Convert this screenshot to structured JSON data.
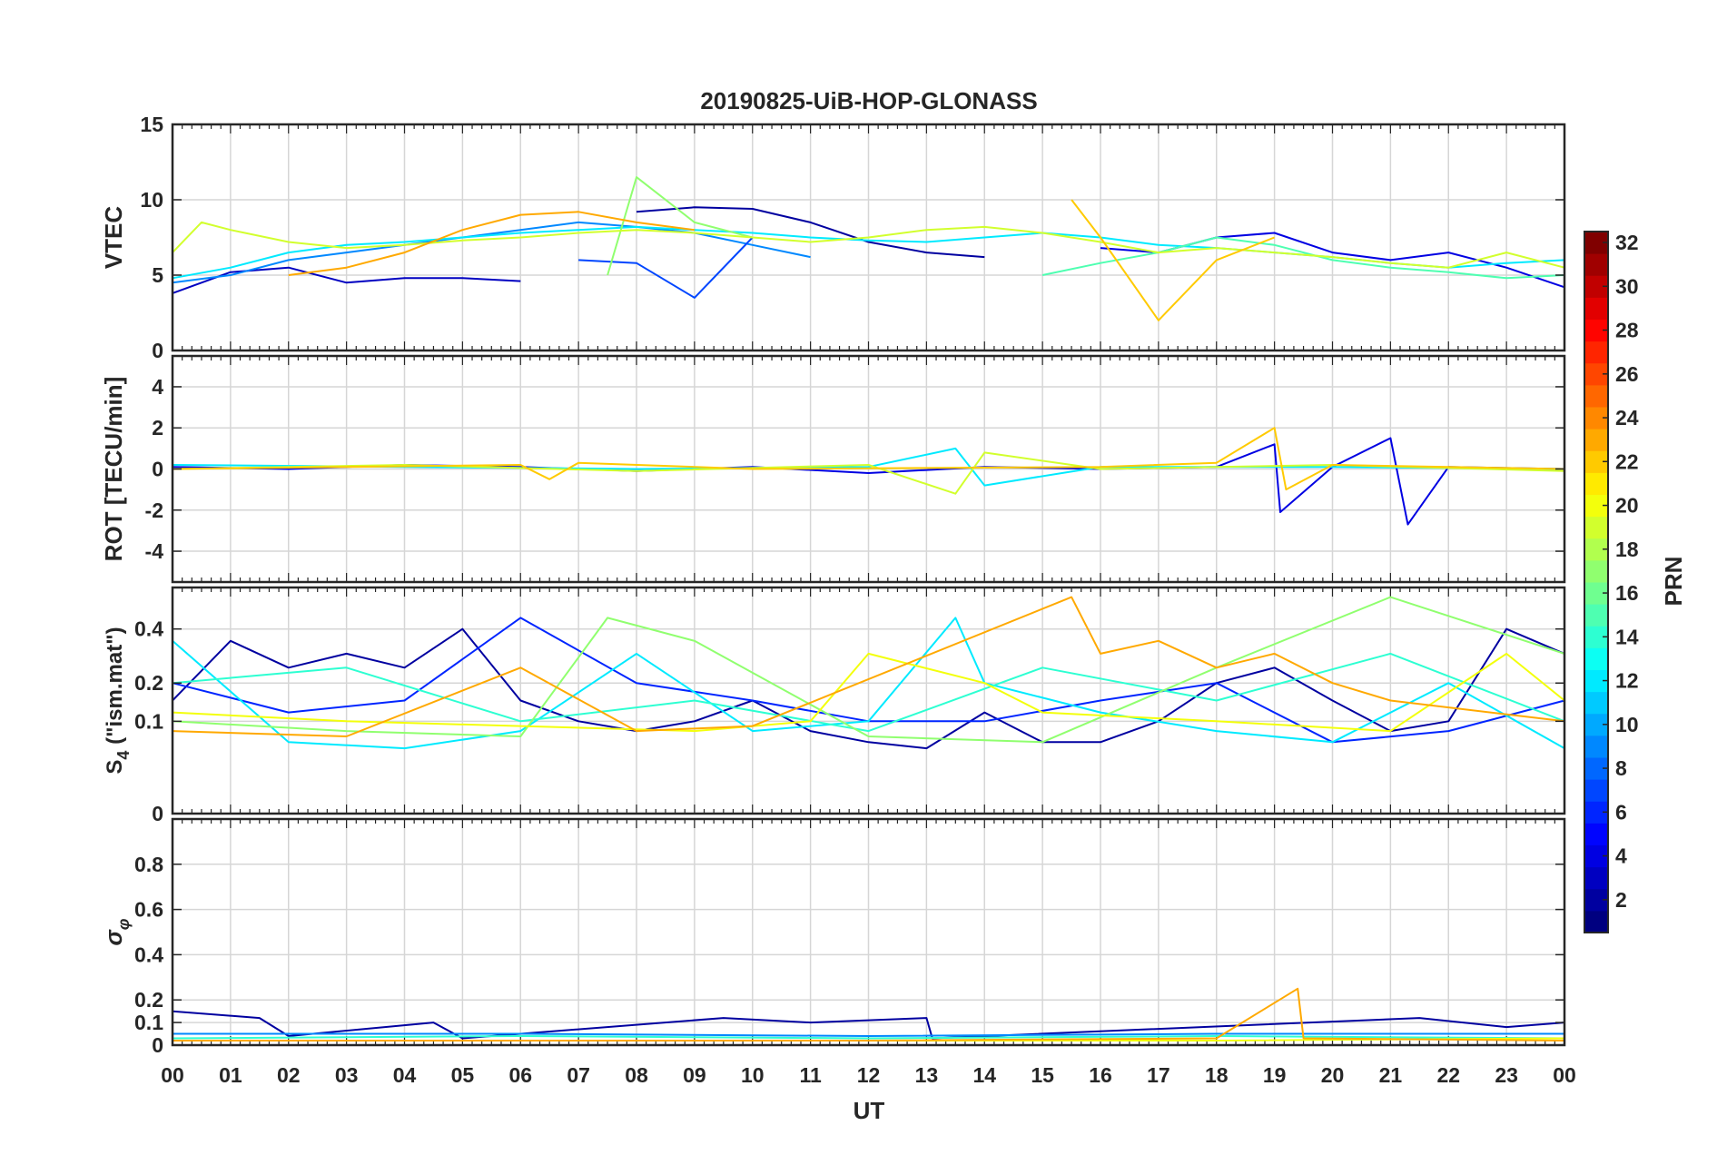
{
  "title": "20190825-UiB-HOP-GLONASS",
  "x_axis": {
    "label": "UT",
    "min": 0,
    "max": 24,
    "tick_labels": [
      "00",
      "01",
      "02",
      "03",
      "04",
      "05",
      "06",
      "07",
      "08",
      "09",
      "10",
      "11",
      "12",
      "13",
      "14",
      "15",
      "16",
      "17",
      "18",
      "19",
      "20",
      "21",
      "22",
      "23",
      "00"
    ]
  },
  "colorbar": {
    "label": "PRN",
    "min": 1,
    "max": 32,
    "tick_labels": [
      "2",
      "4",
      "6",
      "8",
      "10",
      "12",
      "14",
      "16",
      "18",
      "20",
      "22",
      "24",
      "26",
      "28",
      "30",
      "32"
    ],
    "colormap": "jet"
  },
  "chart_data": [
    {
      "type": "line",
      "panel": "vtec",
      "ylabel": "VTEC",
      "ylim": [
        0,
        15
      ],
      "yticks": [
        0,
        5,
        10,
        15
      ],
      "ytick_labels": [
        "0",
        "5",
        "10",
        "15"
      ],
      "grid": true,
      "series": [
        {
          "prn": 3,
          "x": [
            0,
            1,
            2,
            3,
            4,
            5,
            6
          ],
          "y": [
            3.8,
            5.2,
            5.5,
            4.5,
            4.8,
            4.8,
            4.6
          ]
        },
        {
          "prn": 2,
          "x": [
            8,
            9,
            10,
            11,
            12,
            13,
            14
          ],
          "y": [
            9.2,
            9.5,
            9.4,
            8.5,
            7.2,
            6.5,
            6.2
          ]
        },
        {
          "prn": 4,
          "x": [
            16,
            17,
            18,
            19,
            20,
            21,
            22,
            23,
            24
          ],
          "y": [
            6.8,
            6.5,
            7.5,
            7.8,
            6.5,
            6.0,
            6.5,
            5.5,
            4.2
          ]
        },
        {
          "prn": 9,
          "x": [
            0,
            1,
            2,
            3,
            4,
            5,
            6,
            7,
            8,
            9,
            10,
            11
          ],
          "y": [
            4.5,
            5.0,
            6.0,
            6.5,
            7.0,
            7.5,
            8.0,
            8.5,
            8.2,
            7.8,
            7.0,
            6.2
          ]
        },
        {
          "prn": 7,
          "x": [
            7,
            8,
            9,
            10
          ],
          "y": [
            6.0,
            5.8,
            3.5,
            7.5
          ]
        },
        {
          "prn": 12,
          "x": [
            0,
            1,
            2,
            3,
            4,
            5,
            6,
            7,
            8,
            9,
            10,
            11,
            12,
            13,
            14,
            15,
            16,
            17,
            18,
            19,
            20,
            21,
            22,
            23,
            24
          ],
          "y": [
            4.8,
            5.5,
            6.5,
            7.0,
            7.2,
            7.5,
            7.8,
            8.0,
            8.2,
            8.0,
            7.8,
            7.5,
            7.3,
            7.2,
            7.5,
            7.8,
            7.5,
            7.0,
            6.8,
            6.5,
            6.2,
            5.8,
            5.5,
            5.8,
            6.0
          ]
        },
        {
          "prn": 15,
          "x": [
            15,
            16,
            17,
            18,
            19,
            20,
            21,
            22,
            23,
            24
          ],
          "y": [
            5.0,
            5.8,
            6.5,
            7.5,
            7.0,
            6.0,
            5.5,
            5.2,
            4.8,
            5.0
          ]
        },
        {
          "prn": 17,
          "x": [
            7.5,
            8,
            9,
            10
          ],
          "y": [
            5.0,
            11.5,
            8.5,
            7.5
          ]
        },
        {
          "prn": 19,
          "x": [
            0,
            0.5,
            1,
            2,
            3,
            4,
            5,
            6,
            7,
            8,
            9,
            10,
            11,
            12,
            13,
            14,
            15,
            16,
            17,
            18,
            19,
            20,
            21,
            22,
            23,
            24
          ],
          "y": [
            6.5,
            8.5,
            8.0,
            7.2,
            6.8,
            7.0,
            7.3,
            7.5,
            7.8,
            8.0,
            7.8,
            7.5,
            7.2,
            7.5,
            8.0,
            8.2,
            7.8,
            7.2,
            6.5,
            6.8,
            6.5,
            6.2,
            5.8,
            5.5,
            6.5,
            5.5
          ]
        },
        {
          "prn": 23,
          "x": [
            2,
            3,
            4,
            5,
            6,
            7,
            8,
            9
          ],
          "y": [
            5.0,
            5.5,
            6.5,
            8.0,
            9.0,
            9.2,
            8.5,
            8.0
          ]
        },
        {
          "prn": 22,
          "x": [
            15.5,
            16,
            17,
            18,
            19
          ],
          "y": [
            10.0,
            7.5,
            2.0,
            6.0,
            7.5
          ]
        }
      ]
    },
    {
      "type": "line",
      "panel": "rot",
      "ylabel": "ROT [TECU/min]",
      "ylim": [
        -5.5,
        5.5
      ],
      "yticks": [
        -4,
        -2,
        0,
        2,
        4
      ],
      "ytick_labels": [
        "-4",
        "-2",
        "0",
        "2",
        "4"
      ],
      "grid": true,
      "series": [
        {
          "prn": 4,
          "x": [
            0,
            2,
            4,
            6,
            8,
            10,
            12,
            14,
            16,
            18,
            19,
            19.1,
            20,
            21,
            21.3,
            22,
            24
          ],
          "y": [
            0.1,
            0.0,
            0.2,
            0.1,
            -0.1,
            0.1,
            -0.2,
            0.1,
            0.0,
            0.1,
            1.2,
            -2.1,
            0.1,
            1.5,
            -2.7,
            0.1,
            0.0
          ]
        },
        {
          "prn": 12,
          "x": [
            0,
            4,
            8,
            12,
            13.5,
            14,
            16,
            20,
            24
          ],
          "y": [
            0.2,
            0.1,
            0.0,
            0.1,
            1.0,
            -0.8,
            0.1,
            0.1,
            0.0
          ]
        },
        {
          "prn": 19,
          "x": [
            0,
            4,
            8,
            12,
            13.5,
            14,
            16,
            20,
            24
          ],
          "y": [
            0.0,
            0.2,
            -0.1,
            0.2,
            -1.2,
            0.8,
            0.0,
            0.2,
            -0.1
          ]
        },
        {
          "prn": 22,
          "x": [
            0,
            6,
            6.5,
            7,
            10,
            16,
            18,
            19,
            19.2,
            20,
            24
          ],
          "y": [
            0.0,
            0.2,
            -0.5,
            0.3,
            0.0,
            0.1,
            0.3,
            2.0,
            -1.0,
            0.2,
            0.0
          ]
        }
      ]
    },
    {
      "type": "line",
      "panel": "s4",
      "ylabel": "S4 (\"ism.mat\")",
      "ylim": [
        0,
        0.6
      ],
      "scale": "sqrt",
      "yticks": [
        0,
        0.1,
        0.2,
        0.4
      ],
      "ytick_labels": [
        "0",
        "0.1",
        "0.2",
        "0.4"
      ],
      "grid": true,
      "series": [
        {
          "prn": 2,
          "x": [
            0,
            1,
            2,
            3,
            4,
            5,
            6,
            7,
            8,
            9,
            10,
            11,
            12,
            13,
            14,
            15,
            16,
            17,
            18,
            19,
            20,
            21,
            22,
            23,
            24
          ],
          "y": [
            0.15,
            0.35,
            0.25,
            0.3,
            0.25,
            0.4,
            0.15,
            0.1,
            0.08,
            0.1,
            0.15,
            0.08,
            0.06,
            0.05,
            0.12,
            0.06,
            0.06,
            0.1,
            0.2,
            0.25,
            0.15,
            0.08,
            0.1,
            0.4,
            0.3
          ]
        },
        {
          "prn": 6,
          "x": [
            0,
            2,
            4,
            6,
            8,
            10,
            12,
            14,
            16,
            18,
            20,
            22,
            24
          ],
          "y": [
            0.2,
            0.12,
            0.15,
            0.45,
            0.2,
            0.15,
            0.1,
            0.1,
            0.15,
            0.2,
            0.06,
            0.08,
            0.15
          ]
        },
        {
          "prn": 12,
          "x": [
            0,
            2,
            4,
            6,
            8,
            10,
            12,
            13.5,
            14,
            16,
            18,
            20,
            22,
            24
          ],
          "y": [
            0.35,
            0.06,
            0.05,
            0.08,
            0.3,
            0.08,
            0.1,
            0.45,
            0.2,
            0.12,
            0.08,
            0.06,
            0.2,
            0.05
          ]
        },
        {
          "prn": 14,
          "x": [
            0,
            3,
            6,
            9,
            12,
            15,
            18,
            21,
            24
          ],
          "y": [
            0.2,
            0.25,
            0.1,
            0.15,
            0.08,
            0.25,
            0.15,
            0.3,
            0.1
          ]
        },
        {
          "prn": 17,
          "x": [
            0,
            3,
            6,
            7.5,
            9,
            12,
            15,
            18,
            21,
            24
          ],
          "y": [
            0.1,
            0.08,
            0.07,
            0.45,
            0.35,
            0.07,
            0.06,
            0.25,
            0.55,
            0.3
          ]
        },
        {
          "prn": 20,
          "x": [
            0,
            3,
            6,
            9,
            11,
            12,
            14,
            15,
            18,
            21,
            23,
            24
          ],
          "y": [
            0.12,
            0.1,
            0.09,
            0.08,
            0.1,
            0.3,
            0.2,
            0.12,
            0.1,
            0.08,
            0.3,
            0.15
          ]
        },
        {
          "prn": 23,
          "x": [
            0,
            3,
            6,
            8,
            10,
            15.5,
            16,
            17,
            18,
            19,
            20,
            21,
            24
          ],
          "y": [
            0.08,
            0.07,
            0.25,
            0.08,
            0.09,
            0.55,
            0.3,
            0.35,
            0.25,
            0.3,
            0.2,
            0.15,
            0.1
          ]
        }
      ]
    },
    {
      "type": "line",
      "panel": "sigma_phi",
      "ylabel": "σφ",
      "ylim": [
        0,
        1
      ],
      "yticks": [
        0,
        0.1,
        0.2,
        0.4,
        0.6,
        0.8
      ],
      "ytick_labels": [
        "0",
        "0.1",
        "0.2",
        "0.4",
        "0.6",
        "0.8"
      ],
      "grid": true,
      "series": [
        {
          "prn": 2,
          "x": [
            0,
            1.5,
            2,
            4.5,
            5,
            9.5,
            11,
            13,
            13.1,
            21.5,
            23,
            24
          ],
          "y": [
            0.15,
            0.12,
            0.04,
            0.1,
            0.03,
            0.12,
            0.1,
            0.12,
            0.03,
            0.12,
            0.08,
            0.1
          ]
        },
        {
          "prn": 9,
          "x": [
            0,
            6,
            12,
            18,
            24
          ],
          "y": [
            0.05,
            0.05,
            0.04,
            0.05,
            0.05
          ]
        },
        {
          "prn": 14,
          "x": [
            0,
            6,
            12,
            18,
            24
          ],
          "y": [
            0.03,
            0.04,
            0.03,
            0.04,
            0.03
          ]
        },
        {
          "prn": 20,
          "x": [
            0,
            6,
            12,
            18,
            24
          ],
          "y": [
            0.02,
            0.02,
            0.02,
            0.02,
            0.03
          ]
        },
        {
          "prn": 23,
          "x": [
            0,
            6,
            12,
            18,
            19.4,
            19.5,
            24
          ],
          "y": [
            0.02,
            0.02,
            0.02,
            0.03,
            0.25,
            0.03,
            0.02
          ]
        }
      ]
    }
  ]
}
